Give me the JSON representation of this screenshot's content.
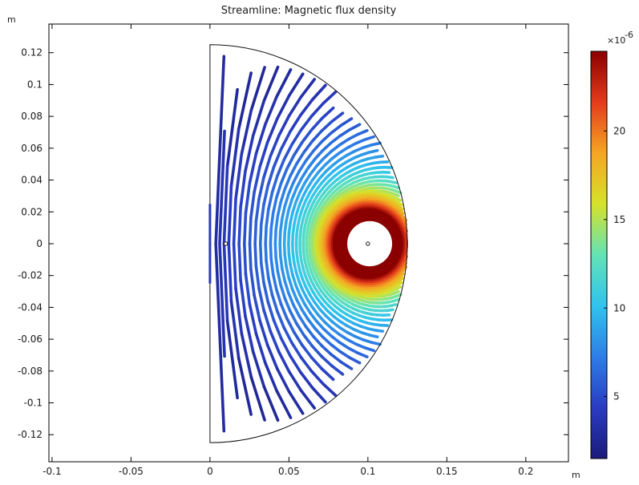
{
  "chart_data": {
    "type": "streamline",
    "title": "Streamline: Magnetic flux density",
    "xlabel": "m",
    "ylabel": "m",
    "xlim": [
      -0.102,
      0.227
    ],
    "ylim": [
      -0.137,
      0.138
    ],
    "xticks": [
      -0.1,
      -0.05,
      0,
      0.05,
      0.1,
      0.15,
      0.2
    ],
    "xtick_labels": [
      "-0.1",
      "-0.05",
      "0",
      "0.05",
      "0.1",
      "0.15",
      "0.2"
    ],
    "yticks": [
      0.12,
      0.1,
      0.08,
      0.06,
      0.04,
      0.02,
      0,
      -0.02,
      -0.04,
      -0.06,
      -0.08,
      -0.1,
      -0.12
    ],
    "ytick_labels": [
      "0.12",
      "0.1",
      "0.08",
      "0.06",
      "0.04",
      "0.02",
      "0",
      "-0.02",
      "-0.04",
      "-0.06",
      "-0.08",
      "-0.1",
      "-0.12"
    ],
    "domain": {
      "shape": "half-disk",
      "center": [
        0,
        0
      ],
      "radius": 0.125
    },
    "markers": [
      {
        "name": "inner-point",
        "x": 0.01,
        "y": 0
      },
      {
        "name": "coil-point",
        "x": 0.1,
        "y": 0
      }
    ],
    "coil_position": [
      0.1,
      0
    ],
    "streamlines": {
      "count": 46,
      "field": "Magnetic flux density"
    },
    "colorbar": {
      "multiplier": "×10",
      "exponent": "-6",
      "ticks": [
        5,
        10,
        15,
        20
      ],
      "tick_labels": [
        "5",
        "10",
        "15",
        "20"
      ],
      "range": [
        1.5,
        24.5
      ],
      "colormap": "rainbow",
      "colormap_stops": [
        "#1b1b7a",
        "#2a3cc2",
        "#2d7ee6",
        "#30c3ee",
        "#63e3b6",
        "#d6e22a",
        "#f5a623",
        "#e43b1b",
        "#8b0000"
      ]
    },
    "grid": false,
    "legend": "colorbar-right"
  }
}
